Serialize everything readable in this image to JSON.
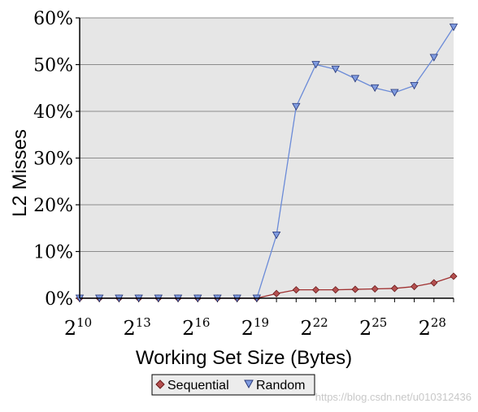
{
  "chart_data": {
    "type": "line",
    "x_exponents": [
      10,
      11,
      12,
      13,
      14,
      15,
      16,
      17,
      18,
      19,
      20,
      21,
      22,
      23,
      24,
      25,
      26,
      27,
      28,
      29
    ],
    "x_tick_exponents": [
      10,
      13,
      16,
      19,
      22,
      25,
      28
    ],
    "x_tick_base": "2",
    "xlabel": "Working Set Size (Bytes)",
    "ylabel": "L2 Misses",
    "ylim": [
      0,
      60
    ],
    "y_ticks": [
      "0%",
      "10%",
      "20%",
      "30%",
      "40%",
      "50%",
      "60%"
    ],
    "x_scale": "log2",
    "grid": "horizontal",
    "legend_position": "bottom",
    "series": [
      {
        "name": "Sequential",
        "marker": "diamond",
        "color": "#a03030",
        "marker_fill": "#b45050",
        "values": [
          0,
          0,
          0,
          0,
          0,
          0,
          0,
          0,
          0,
          0,
          1.0,
          1.8,
          1.8,
          1.8,
          1.9,
          2.0,
          2.1,
          2.5,
          3.3,
          4.7
        ]
      },
      {
        "name": "Random",
        "marker": "triangle-down",
        "color": "#6b8bd8",
        "marker_fill": "#7f9be0",
        "values": [
          0,
          0,
          0,
          0,
          0,
          0,
          0,
          0,
          0,
          0,
          13.5,
          41.0,
          50.0,
          49.0,
          47.0,
          45.0,
          44.0,
          45.5,
          51.5,
          58.0
        ]
      }
    ]
  },
  "watermark": "https://blog.csdn.net/u010312436",
  "colors": {
    "plot_bg": "#e6e6e6",
    "grid": "#8c8c8c"
  }
}
